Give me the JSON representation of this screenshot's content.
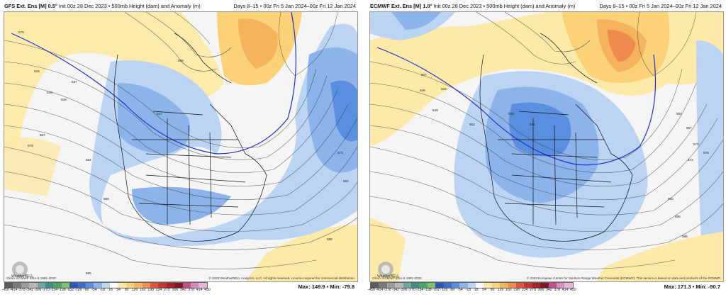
{
  "panels": [
    {
      "model": "GFS Ext. Ens [M] 0.5°",
      "init": "Init 00z 28 Dec 2023",
      "field": "500mb Height (dam) and Anomaly (m)",
      "days": "Days 8–15 • 00z Fri 5 Jan 2024–00z Fri 12 Jan 2024",
      "climo": "Climo: ECMWF ERA-5 1991-2020",
      "copyright": "© 2023 WeatherBELL Analytics, LLC. All rights reserved. License required for commercial distribution.",
      "logo_text": "WeatherBELL",
      "max_label": "Max:",
      "max_value": "149.9",
      "min_label": "Min:",
      "min_value": "-79.8",
      "contour_labels": [
        "579",
        "543",
        "537",
        "546",
        "549",
        "567",
        "564",
        "579",
        "585",
        "588",
        "537",
        "558",
        "573",
        "582",
        "585"
      ]
    },
    {
      "model": "ECMWF Ext. Ens [M] 1.0°",
      "init": "Init 00z 28 Dec 2023",
      "field": "500mb Height (dam) and Anomaly (m)",
      "days": "Days 8–15 • 00z Fri 5 Jan 2024–00z Fri 12 Jan 2024",
      "climo": "Climo: ECMWF ERA-5 1991-2020",
      "copyright": "© 2023 European Centre for Medium-Range Weather Forecasts (ECMWF). This service is based on data and products of the ECMWF.",
      "logo_text": "WeatherBELL",
      "max_label": "Max:",
      "max_value": "171.3",
      "min_label": "Min:",
      "min_value": "-90.7",
      "contour_labels": [
        "537",
        "543",
        "546",
        "549",
        "552",
        "528",
        "534",
        "564",
        "567",
        "570",
        "573",
        "576",
        "582",
        "585",
        "588"
      ]
    }
  ],
  "colorbar": {
    "labels": [
      "-450",
      "-414",
      "-378",
      "-342",
      "-306",
      "-270",
      "-234",
      "-198",
      "-162",
      "-126",
      "-90",
      "-54",
      "-18",
      "18",
      "54",
      "90",
      "126",
      "162",
      "198",
      "234",
      "270",
      "306",
      "342",
      "378",
      "414",
      "450"
    ],
    "colors": [
      "#5b5b5b",
      "#7a7a7a",
      "#9c9c9c",
      "#b7b7b7",
      "#6fa6a0",
      "#3f8d85",
      "#49a66b",
      "#7cc36a",
      "#2f55b5",
      "#3d6fd0",
      "#5a8fe0",
      "#8db4ea",
      "#bcd4f3",
      "#ffffff",
      "#fde9a6",
      "#fbd277",
      "#f6b35e",
      "#ef8b4c",
      "#e0553d",
      "#c8342f",
      "#a3252a",
      "#7b1c2a",
      "#c44f8a",
      "#d889b9",
      "#e3b7d5"
    ]
  }
}
